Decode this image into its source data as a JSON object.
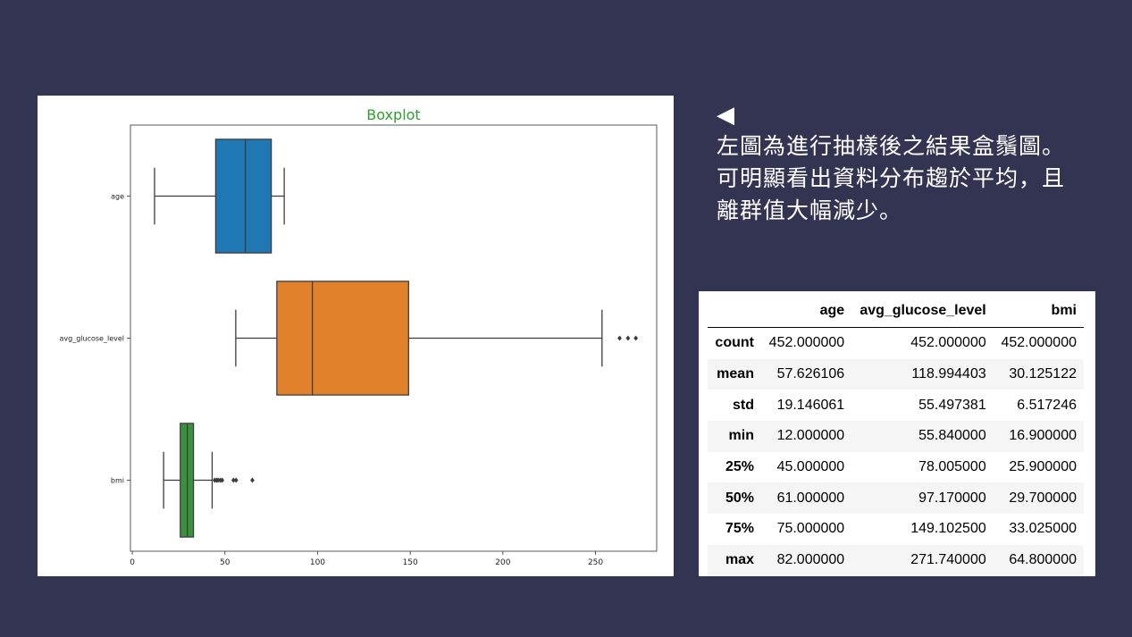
{
  "note": {
    "arrow": "◀",
    "lines": [
      "左圖為進行抽樣後之結果盒鬚圖。",
      "可明顯看出資料分布趨於平均，且",
      "離群值大幅減少。"
    ]
  },
  "table": {
    "columns": [
      "",
      "age",
      "avg_glucose_level",
      "bmi"
    ],
    "rows": [
      [
        "count",
        "452.000000",
        "452.000000",
        "452.000000"
      ],
      [
        "mean",
        "57.626106",
        "118.994403",
        "30.125122"
      ],
      [
        "std",
        "19.146061",
        "55.497381",
        "6.517246"
      ],
      [
        "min",
        "12.000000",
        "55.840000",
        "16.900000"
      ],
      [
        "25%",
        "45.000000",
        "78.005000",
        "25.900000"
      ],
      [
        "50%",
        "61.000000",
        "97.170000",
        "29.700000"
      ],
      [
        "75%",
        "75.000000",
        "149.102500",
        "33.025000"
      ],
      [
        "max",
        "82.000000",
        "271.740000",
        "64.800000"
      ]
    ]
  },
  "chart_data": {
    "type": "boxplot",
    "title": "Boxplot",
    "title_color": "#2ca02c",
    "orientation": "horizontal",
    "xlim": [
      -1,
      283
    ],
    "xticks": [
      0,
      50,
      100,
      150,
      200,
      250
    ],
    "categories": [
      "age",
      "avg_glucose_level",
      "bmi"
    ],
    "series": [
      {
        "name": "age",
        "color": "#1f77b4",
        "whisker_low": 12,
        "q1": 45,
        "median": 61,
        "q3": 75,
        "whisker_high": 82,
        "outliers": []
      },
      {
        "name": "avg_glucose_level",
        "color": "#e1812c",
        "whisker_low": 55.84,
        "q1": 78.005,
        "median": 97.17,
        "q3": 149.1025,
        "whisker_high": 253.5,
        "outliers": [
          263,
          267.5,
          271.74
        ]
      },
      {
        "name": "bmi",
        "color": "#3a923a",
        "whisker_low": 16.9,
        "q1": 25.9,
        "median": 29.7,
        "q3": 33.025,
        "whisker_high": 43.1,
        "outliers": [
          44.5,
          45.5,
          46.3,
          47.5,
          48.5,
          54.6,
          56,
          64.8
        ]
      }
    ]
  }
}
